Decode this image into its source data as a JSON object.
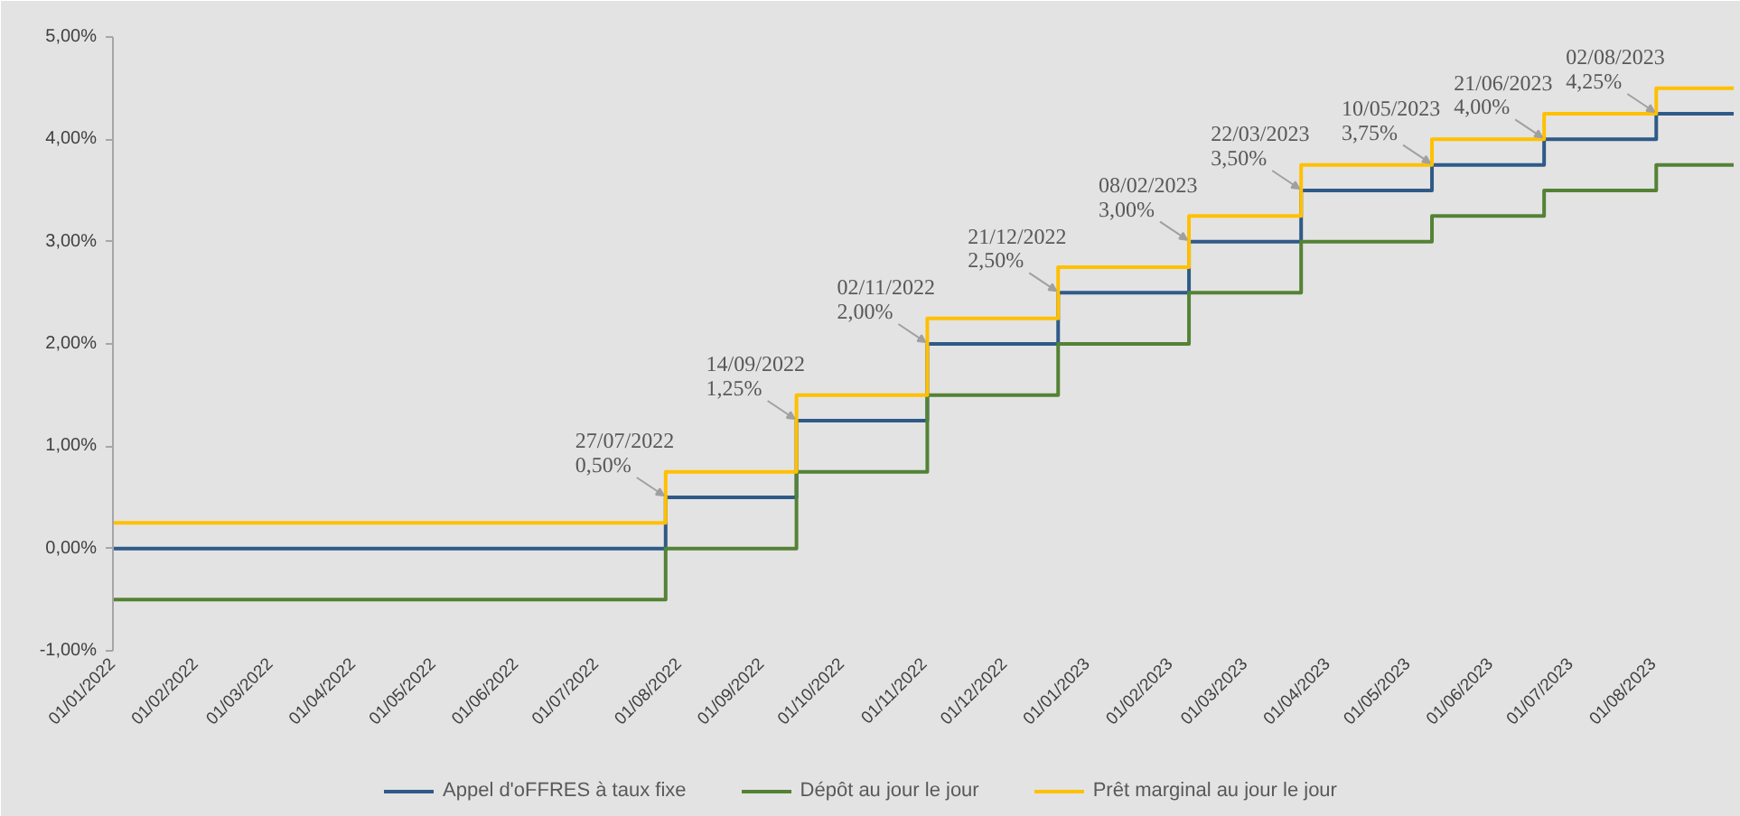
{
  "chart_data": {
    "type": "step",
    "x": [
      "2022-01-01",
      "2022-07-27",
      "2022-09-14",
      "2022-11-02",
      "2022-12-21",
      "2023-02-08",
      "2023-03-22",
      "2023-05-10",
      "2023-06-21",
      "2023-08-02",
      "2023-08-31"
    ],
    "series": [
      {
        "name": "Appel d'oFFRES à taux fixe",
        "color": "#2f5a88",
        "values": [
          0.0,
          0.5,
          1.25,
          2.0,
          2.5,
          3.0,
          3.5,
          3.75,
          4.0,
          4.25,
          4.25
        ]
      },
      {
        "name": "Dépôt au jour le jour",
        "color": "#548235",
        "values": [
          -0.5,
          0.0,
          0.75,
          1.5,
          2.0,
          2.5,
          3.0,
          3.25,
          3.5,
          3.75,
          3.75
        ]
      },
      {
        "name": "Prêt marginal au jour le jour",
        "color": "#ffc000",
        "values": [
          0.25,
          0.75,
          1.5,
          2.25,
          2.75,
          3.25,
          3.75,
          4.0,
          4.25,
          4.5,
          4.5
        ]
      }
    ],
    "xlim": [
      "2022-01-01",
      "2023-08-31"
    ],
    "xticks": [
      {
        "value": "2022-01-01",
        "label": "01/01/2022"
      },
      {
        "value": "2022-02-01",
        "label": "01/02/2022"
      },
      {
        "value": "2022-03-01",
        "label": "01/03/2022"
      },
      {
        "value": "2022-04-01",
        "label": "01/04/2022"
      },
      {
        "value": "2022-05-01",
        "label": "01/05/2022"
      },
      {
        "value": "2022-06-01",
        "label": "01/06/2022"
      },
      {
        "value": "2022-07-01",
        "label": "01/07/2022"
      },
      {
        "value": "2022-08-01",
        "label": "01/08/2022"
      },
      {
        "value": "2022-09-01",
        "label": "01/09/2022"
      },
      {
        "value": "2022-10-01",
        "label": "01/10/2022"
      },
      {
        "value": "2022-11-01",
        "label": "01/11/2022"
      },
      {
        "value": "2022-12-01",
        "label": "01/12/2022"
      },
      {
        "value": "2023-01-01",
        "label": "01/01/2023"
      },
      {
        "value": "2023-02-01",
        "label": "01/02/2023"
      },
      {
        "value": "2023-03-01",
        "label": "01/03/2023"
      },
      {
        "value": "2023-04-01",
        "label": "01/04/2023"
      },
      {
        "value": "2023-05-01",
        "label": "01/05/2023"
      },
      {
        "value": "2023-06-01",
        "label": "01/06/2023"
      },
      {
        "value": "2023-07-01",
        "label": "01/07/2023"
      },
      {
        "value": "2023-08-01",
        "label": "01/08/2023"
      }
    ],
    "ylim": [
      -1,
      5
    ],
    "yticks": [
      {
        "value": -1,
        "label": "-1,00%"
      },
      {
        "value": 0,
        "label": "0,00%"
      },
      {
        "value": 1,
        "label": "1,00%"
      },
      {
        "value": 2,
        "label": "2,00%"
      },
      {
        "value": 3,
        "label": "3,00%"
      },
      {
        "value": 4,
        "label": "4,00%"
      },
      {
        "value": 5,
        "label": "5,00%"
      }
    ],
    "grid": false,
    "legend": "bottom",
    "annotations": [
      {
        "text": "27/07/2022\n0,50%",
        "x": "2022-07-27",
        "y": 0.5
      },
      {
        "text": "14/09/2022\n1,25%",
        "x": "2022-09-14",
        "y": 1.25
      },
      {
        "text": "02/11/2022\n2,00%",
        "x": "2022-11-02",
        "y": 2.0
      },
      {
        "text": "21/12/2022\n2,50%",
        "x": "2022-12-21",
        "y": 2.5
      },
      {
        "text": "08/02/2023\n3,00%",
        "x": "2023-02-08",
        "y": 3.0
      },
      {
        "text": "22/03/2023\n3,50%",
        "x": "2023-03-22",
        "y": 3.5
      },
      {
        "text": "10/05/2023\n3,75%",
        "x": "2023-05-10",
        "y": 3.75
      },
      {
        "text": "21/06/2023\n4,00%",
        "x": "2023-06-21",
        "y": 4.0
      },
      {
        "text": "02/08/2023\n4,25%",
        "x": "2023-08-02",
        "y": 4.25
      }
    ]
  }
}
